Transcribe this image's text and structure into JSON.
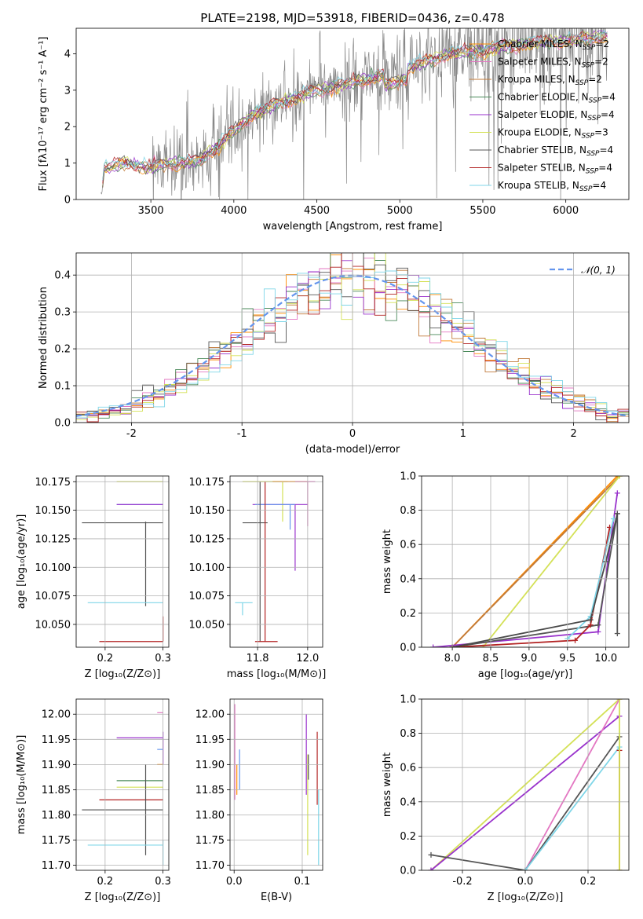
{
  "title": "PLATE=2198, MJD=53918, FIBERID=0436, z=0.478",
  "colors": {
    "data_spectrum": "#888888",
    "gaussian": "#6495ed",
    "grid": "#b0b0b0",
    "models": [
      "#ff8c00",
      "#e377c2",
      "#c17a3a",
      "#4a8a5a",
      "#9932cc",
      "#d4e157",
      "#555555",
      "#b22222",
      "#7fd6e8"
    ]
  },
  "legend_models": [
    {
      "name": "Chabrier MILES, N",
      "sub": "SSP",
      "suffix": "=2",
      "color": "#ff8c00"
    },
    {
      "name": "Salpeter MILES, N",
      "sub": "SSP",
      "suffix": "=2",
      "color": "#e377c2"
    },
    {
      "name": "Kroupa MILES, N",
      "sub": "SSP",
      "suffix": "=2",
      "color": "#c17a3a"
    },
    {
      "name": "Chabrier ELODIE, N",
      "sub": "SSP",
      "suffix": "=4",
      "color": "#4a8a5a"
    },
    {
      "name": "Salpeter ELODIE, N",
      "sub": "SSP",
      "suffix": "=4",
      "color": "#9932cc"
    },
    {
      "name": "Kroupa ELODIE, N",
      "sub": "SSP",
      "suffix": "=3",
      "color": "#d4e157"
    },
    {
      "name": "Chabrier STELIB, N",
      "sub": "SSP",
      "suffix": "=4",
      "color": "#555555"
    },
    {
      "name": "Salpeter STELIB, N",
      "sub": "SSP",
      "suffix": "=4",
      "color": "#b22222"
    },
    {
      "name": "Kroupa STELIB, N",
      "sub": "SSP",
      "suffix": "=4",
      "color": "#7fd6e8"
    }
  ],
  "chart_data": [
    {
      "type": "line",
      "name": "spectrum",
      "xlabel": "wavelength [Angstrom, rest frame]",
      "ylabel": "Flux [fλ10⁻¹⁷ erg cm⁻² s⁻¹ A⁻¹]",
      "xlim": [
        3050,
        6380
      ],
      "ylim": [
        0,
        4.7
      ],
      "xticks": [
        3500,
        4000,
        4500,
        5000,
        5500,
        6000
      ],
      "yticks": [
        0,
        1,
        2,
        3,
        4
      ],
      "continuum": [
        [
          3200,
          0.0
        ],
        [
          3220,
          0.85
        ],
        [
          3350,
          1.0
        ],
        [
          3500,
          0.85
        ],
        [
          3600,
          1.0
        ],
        [
          3700,
          1.0
        ],
        [
          3800,
          1.1
        ],
        [
          3900,
          1.45
        ],
        [
          4000,
          1.9
        ],
        [
          4100,
          2.3
        ],
        [
          4300,
          2.7
        ],
        [
          4500,
          3.0
        ],
        [
          4700,
          3.2
        ],
        [
          4900,
          3.4
        ],
        [
          5100,
          3.7
        ],
        [
          5300,
          4.0
        ],
        [
          5500,
          4.1
        ],
        [
          5800,
          4.3
        ],
        [
          6100,
          4.4
        ],
        [
          6250,
          4.5
        ]
      ]
    },
    {
      "type": "histogram",
      "name": "residuals",
      "xlabel": "(data-model)/error",
      "ylabel": "Normed distribution",
      "xlim": [
        -2.5,
        2.5
      ],
      "ylim": [
        0,
        0.46
      ],
      "xticks": [
        -2,
        -1,
        0,
        1,
        2
      ],
      "yticks": [
        0.0,
        0.1,
        0.2,
        0.3,
        0.4
      ],
      "legend": "𝒩(0, 1)",
      "gaussian": {
        "mean": 0,
        "sigma": 1
      }
    },
    {
      "type": "errorbar",
      "name": "age-vs-Z",
      "xlabel": "Z [log₁₀(Z/Z⊙)]",
      "ylabel": "age  [log₁₀(age/yr)]",
      "xlim": [
        0.15,
        0.31
      ],
      "ylim": [
        10.03,
        10.18
      ],
      "xticks": [
        0.1,
        0.2,
        0.3
      ],
      "yticks": [
        10.05,
        10.075,
        10.1,
        10.125,
        10.15,
        10.175
      ],
      "points": [
        {
          "x": 0.3,
          "y": 10.175,
          "xerr": [
            0.3,
            0.3
          ],
          "color": "#ff8c00"
        },
        {
          "x": 0.27,
          "y": 10.175,
          "xerr": [
            0.22,
            0.3
          ],
          "color": "#d4e157"
        },
        {
          "x": 0.3,
          "y": 10.155,
          "xerr": [
            0.22,
            0.3
          ],
          "color": "#6495ed"
        },
        {
          "x": 0.27,
          "y": 10.155,
          "xerr": [
            0.22,
            0.3
          ],
          "color": "#9932cc"
        },
        {
          "x": 0.27,
          "y": 10.139,
          "xerr": [
            0.16,
            0.3
          ],
          "yerr": [
            10.066,
            10.14
          ],
          "color": "#555555"
        },
        {
          "x": 0.3,
          "y": 10.069,
          "xerr": [
            0.17,
            0.3
          ],
          "color": "#7fd6e8"
        },
        {
          "x": 0.3,
          "y": 10.035,
          "xerr": [
            0.19,
            0.3
          ],
          "yerr": [
            10.035,
            10.057
          ],
          "color": "#b22222"
        }
      ]
    },
    {
      "type": "errorbar",
      "name": "age-vs-mass",
      "xlabel": "mass [log₁₀(M/M⊙)]",
      "ylabel": "",
      "xlim": [
        11.69,
        12.06
      ],
      "ylim": [
        10.03,
        10.18
      ],
      "xticks": [
        11.8,
        12.0
      ],
      "yticks": [
        10.05,
        10.075,
        10.1,
        10.125,
        10.15,
        10.175
      ],
      "points": [
        {
          "x": 11.9,
          "y": 10.175,
          "xerr": [
            11.74,
            11.92
          ],
          "yerr": [
            10.14,
            10.175
          ],
          "color": "#d4e157"
        },
        {
          "x": 11.92,
          "y": 10.175,
          "xerr": [
            11.86,
            12.0
          ],
          "color": "#ff8c00"
        },
        {
          "x": 12.0,
          "y": 10.175,
          "xerr": [
            11.95,
            12.03
          ],
          "yerr": [
            10.136,
            10.175
          ],
          "color": "#e377c2"
        },
        {
          "x": 11.95,
          "y": 10.155,
          "xerr": [
            11.78,
            12.0
          ],
          "yerr": [
            10.097,
            10.155
          ],
          "color": "#9932cc"
        },
        {
          "x": 11.93,
          "y": 10.155,
          "xerr": [
            11.79,
            11.95
          ],
          "yerr": [
            10.133,
            10.155
          ],
          "color": "#6495ed"
        },
        {
          "x": 11.81,
          "y": 10.139,
          "xerr": [
            11.74,
            11.84
          ],
          "yerr": [
            10.035,
            10.175
          ],
          "color": "#555555"
        },
        {
          "x": 11.74,
          "y": 10.069,
          "xerr": [
            11.71,
            11.78
          ],
          "yerr": [
            10.058,
            10.069
          ],
          "color": "#7fd6e8"
        },
        {
          "x": 11.83,
          "y": 10.035,
          "xerr": [
            11.79,
            11.88
          ],
          "yerr": [
            10.035,
            10.175
          ],
          "color": "#b22222"
        }
      ]
    },
    {
      "type": "line",
      "name": "mass-weight-vs-age",
      "xlabel": "age  [log₁₀(age/yr)]",
      "ylabel": "mass weight",
      "xlim": [
        7.6,
        10.3
      ],
      "ylim": [
        0,
        1.0
      ],
      "xticks": [
        8.0,
        8.5,
        9.0,
        9.5,
        10.0
      ],
      "yticks": [
        0.0,
        0.2,
        0.4,
        0.6,
        0.8,
        1.0
      ],
      "series": [
        {
          "color": "#ff8c00",
          "points": [
            [
              8.0,
              0.0
            ],
            [
              10.15,
              1.0
            ]
          ]
        },
        {
          "color": "#c17a3a",
          "points": [
            [
              8.0,
              0.0
            ],
            [
              10.18,
              1.0
            ]
          ]
        },
        {
          "color": "#d4e157",
          "points": [
            [
              8.4,
              0.0
            ],
            [
              10.18,
              1.0
            ]
          ]
        },
        {
          "color": "#9932cc",
          "points": [
            [
              7.75,
              0.0
            ],
            [
              9.9,
              0.09
            ],
            [
              10.15,
              0.9
            ]
          ]
        },
        {
          "color": "#555555",
          "points": [
            [
              8.0,
              0.0
            ],
            [
              9.9,
              0.13
            ],
            [
              10.15,
              0.78
            ],
            [
              10.15,
              0.08
            ]
          ]
        },
        {
          "color": "#b22222",
          "points": [
            [
              8.0,
              0.0
            ],
            [
              9.6,
              0.04
            ],
            [
              9.8,
              0.13
            ],
            [
              10.05,
              0.7
            ]
          ]
        },
        {
          "color": "#7fd6e8",
          "points": [
            [
              9.5,
              0.05
            ],
            [
              9.8,
              0.18
            ],
            [
              10.1,
              0.75
            ]
          ]
        },
        {
          "color": "#4a4a4a",
          "points": [
            [
              8.0,
              0.0
            ],
            [
              9.8,
              0.16
            ],
            [
              10.0,
              0.5
            ],
            [
              10.15,
              0.78
            ]
          ]
        }
      ]
    },
    {
      "type": "errorbar",
      "name": "mass-vs-Z",
      "xlabel": "Z [log₁₀(Z/Z⊙)]",
      "ylabel": "mass [log₁₀(M/M⊙)]",
      "xlim": [
        0.15,
        0.31
      ],
      "ylim": [
        11.69,
        12.03
      ],
      "xticks": [
        0.1,
        0.2,
        0.3
      ],
      "yticks": [
        11.7,
        11.75,
        11.8,
        11.85,
        11.9,
        11.95,
        12.0
      ],
      "points": [
        {
          "x": 0.3,
          "y": 12.003,
          "xerr": [
            0.29,
            0.3
          ],
          "color": "#e377c2"
        },
        {
          "x": 0.3,
          "y": 11.953,
          "xerr": [
            0.22,
            0.3
          ],
          "yerr": [
            11.9,
            11.965
          ],
          "color": "#9932cc"
        },
        {
          "x": 0.3,
          "y": 11.93,
          "xerr": [
            0.29,
            0.3
          ],
          "color": "#6495ed"
        },
        {
          "x": 0.3,
          "y": 11.9,
          "xerr": [
            0.29,
            0.3
          ],
          "color": "#ff8c00"
        },
        {
          "x": 0.3,
          "y": 11.868,
          "xerr": [
            0.22,
            0.3
          ],
          "color": "#4a8a5a"
        },
        {
          "x": 0.3,
          "y": 11.855,
          "xerr": [
            0.22,
            0.3
          ],
          "color": "#d4e157"
        },
        {
          "x": 0.3,
          "y": 11.83,
          "xerr": [
            0.19,
            0.3
          ],
          "color": "#b22222"
        },
        {
          "x": 0.27,
          "y": 11.81,
          "xerr": [
            0.16,
            0.3
          ],
          "yerr": [
            11.72,
            11.9
          ],
          "color": "#555555"
        },
        {
          "x": 0.3,
          "y": 11.74,
          "xerr": [
            0.17,
            0.3
          ],
          "yerr": [
            11.7,
            11.75
          ],
          "color": "#7fd6e8"
        }
      ]
    },
    {
      "type": "errorbar",
      "name": "mass-vs-EBV",
      "xlabel": "E(B-V)",
      "ylabel": "",
      "xlim": [
        -0.006,
        0.13
      ],
      "ylim": [
        11.69,
        12.03
      ],
      "xticks": [
        0.0,
        0.1
      ],
      "yticks": [
        11.7,
        11.75,
        11.8,
        11.85,
        11.9,
        11.95,
        12.0
      ],
      "points": [
        {
          "x": 0.001,
          "y": 11.9,
          "yerr": [
            11.83,
            12.02
          ],
          "color": "#e377c2"
        },
        {
          "x": 0.004,
          "y": 11.87,
          "yerr": [
            11.84,
            11.9
          ],
          "color": "#ff8c00"
        },
        {
          "x": 0.008,
          "y": 11.9,
          "yerr": [
            11.85,
            11.93
          ],
          "color": "#6495ed"
        },
        {
          "x": 0.106,
          "y": 11.9,
          "yerr": [
            11.84,
            12.0
          ],
          "color": "#9932cc"
        },
        {
          "x": 0.108,
          "y": 11.9,
          "yerr": [
            11.72,
            11.92
          ],
          "color": "#d4e157"
        },
        {
          "x": 0.109,
          "y": 11.9,
          "yerr": [
            11.87,
            11.92
          ],
          "color": "#555555"
        },
        {
          "x": 0.122,
          "y": 11.9,
          "yerr": [
            11.82,
            11.965
          ],
          "color": "#b22222"
        },
        {
          "x": 0.124,
          "y": 11.85,
          "yerr": [
            11.7,
            11.85
          ],
          "color": "#7fd6e8"
        }
      ]
    },
    {
      "type": "line",
      "name": "mass-weight-vs-Z",
      "xlabel": "Z [log₁₀(Z/Z⊙)]",
      "ylabel": "mass weight",
      "xlim": [
        -0.33,
        0.33
      ],
      "ylim": [
        0,
        1.0
      ],
      "xticks": [
        -0.2,
        0.0,
        0.2
      ],
      "yticks": [
        0.0,
        0.2,
        0.4,
        0.6,
        0.8,
        1.0
      ],
      "series": [
        {
          "color": "#d4e157",
          "points": [
            [
              -0.3,
              0.0
            ],
            [
              0.3,
              1.0
            ]
          ]
        },
        {
          "color": "#9932cc",
          "points": [
            [
              -0.3,
              0.0
            ],
            [
              0.3,
              0.9
            ]
          ]
        },
        {
          "color": "#e377c2",
          "points": [
            [
              0.0,
              0.0
            ],
            [
              0.3,
              1.0
            ]
          ]
        },
        {
          "color": "#555555",
          "points": [
            [
              -0.3,
              0.09
            ],
            [
              0.0,
              0.0
            ],
            [
              0.3,
              0.78
            ]
          ]
        },
        {
          "color": "#7fd6e8",
          "points": [
            [
              0.0,
              0.0
            ],
            [
              0.3,
              0.72
            ]
          ]
        },
        {
          "color": "#b22222",
          "points": [
            [
              0.3,
              0.0
            ],
            [
              0.3,
              0.7
            ]
          ]
        },
        {
          "color": "#d4e157",
          "points": [
            [
              0.3,
              0.0
            ],
            [
              0.3,
              1.0
            ]
          ]
        }
      ]
    }
  ]
}
